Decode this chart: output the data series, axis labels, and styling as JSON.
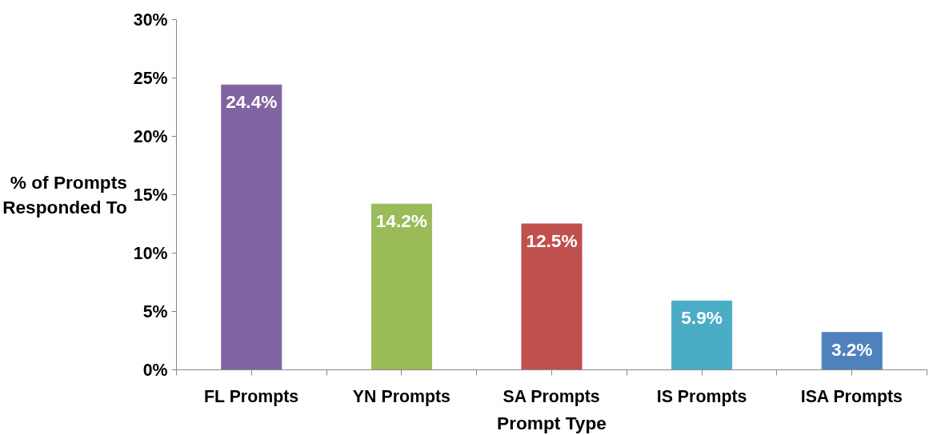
{
  "chart_data": {
    "type": "bar",
    "xlabel": "Prompt Type",
    "ylabel": "% of Prompts\nResponded To",
    "categories": [
      "FL Prompts",
      "YN Prompts",
      "SA Prompts",
      "IS Prompts",
      "ISA Prompts"
    ],
    "values": [
      24.4,
      14.2,
      12.5,
      5.9,
      3.2
    ],
    "colors": [
      "#8064a2",
      "#9bbb59",
      "#c0504d",
      "#4bacc6",
      "#4f81bd"
    ],
    "value_labels": [
      "24.4%",
      "14.2%",
      "12.5%",
      "5.9%",
      "3.2%"
    ],
    "ylim": [
      0,
      30
    ],
    "yticks": [
      {
        "value": 0,
        "label": "0%"
      },
      {
        "value": 5,
        "label": "5%"
      },
      {
        "value": 10,
        "label": "10%"
      },
      {
        "value": 15,
        "label": "15%"
      },
      {
        "value": 20,
        "label": "20%"
      },
      {
        "value": 25,
        "label": "25%"
      },
      {
        "value": 30,
        "label": "30%"
      }
    ],
    "grid": false
  }
}
